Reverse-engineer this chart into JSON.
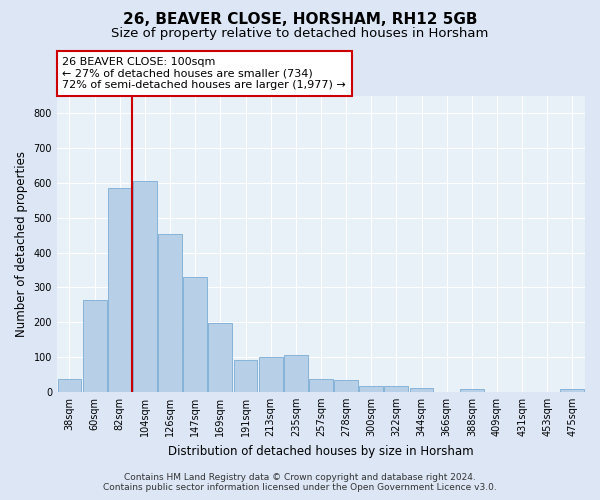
{
  "title": "26, BEAVER CLOSE, HORSHAM, RH12 5GB",
  "subtitle": "Size of property relative to detached houses in Horsham",
  "xlabel": "Distribution of detached houses by size in Horsham",
  "ylabel": "Number of detached properties",
  "categories": [
    "38sqm",
    "60sqm",
    "82sqm",
    "104sqm",
    "126sqm",
    "147sqm",
    "169sqm",
    "191sqm",
    "213sqm",
    "235sqm",
    "257sqm",
    "278sqm",
    "300sqm",
    "322sqm",
    "344sqm",
    "366sqm",
    "388sqm",
    "409sqm",
    "431sqm",
    "453sqm",
    "475sqm"
  ],
  "values": [
    36,
    265,
    585,
    605,
    452,
    330,
    197,
    90,
    100,
    105,
    37,
    33,
    17,
    16,
    11,
    0,
    7,
    0,
    0,
    0,
    8
  ],
  "bar_color": "#b8cfe8",
  "bar_edge_color": "#7aacd4",
  "bar_edge_width": 0.6,
  "vline_pos": 2.5,
  "vline_color": "#cc0000",
  "annotation_text": "26 BEAVER CLOSE: 100sqm\n← 27% of detached houses are smaller (734)\n72% of semi-detached houses are larger (1,977) →",
  "annotation_box_color": "#cc0000",
  "annotation_text_color": "#000000",
  "ylim": [
    0,
    850
  ],
  "yticks": [
    0,
    100,
    200,
    300,
    400,
    500,
    600,
    700,
    800
  ],
  "bg_color": "#dce6f5",
  "plot_bg_color": "#e8f0f8",
  "footer_line1": "Contains HM Land Registry data © Crown copyright and database right 2024.",
  "footer_line2": "Contains public sector information licensed under the Open Government Licence v3.0.",
  "title_fontsize": 11,
  "subtitle_fontsize": 9.5,
  "axis_label_fontsize": 8.5,
  "tick_fontsize": 7,
  "annotation_fontsize": 8,
  "footer_fontsize": 6.5
}
